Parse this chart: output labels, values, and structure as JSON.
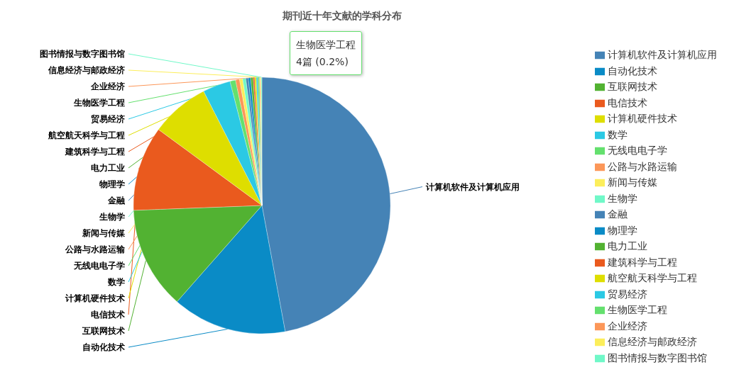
{
  "chart_data": {
    "type": "pie",
    "title": "期刊近十年文献的学科分布",
    "categories": [
      "计算机软件及计算机应用",
      "自动化技术",
      "互联网技术",
      "电信技术",
      "计算机硬件技术",
      "数学",
      "无线电电子学",
      "公路与水路运输",
      "新闻与传媒",
      "生物学",
      "金融",
      "物理学",
      "电力工业",
      "建筑科学与工程",
      "航空航天科学与工程",
      "贸易经济",
      "生物医学工程",
      "企业经济",
      "信息经济与邮政经济",
      "图书情报与数字图书馆"
    ],
    "values": [
      47.1,
      14.4,
      12.9,
      10.7,
      7.4,
      3.5,
      0.7,
      0.5,
      0.4,
      0.4,
      0.3,
      0.3,
      0.3,
      0.2,
      0.2,
      0.2,
      0.2,
      0.1,
      0.1,
      0.1
    ],
    "colors": [
      "#4583b6",
      "#0a8bc6",
      "#52b232",
      "#ea5a1e",
      "#dede00",
      "#2bc9e4",
      "#64e06e",
      "#fc9759",
      "#fcee5b",
      "#70f8c8",
      "#4583b6",
      "#0a8bc6",
      "#52b232",
      "#ea5a1e",
      "#dede00",
      "#2bc9e4",
      "#64e06e",
      "#fc9759",
      "#fcee5b",
      "#70f8c8"
    ],
    "legend": "right",
    "annotations": [
      "生物医学工程\n4篇 (0.2%)"
    ]
  }
}
